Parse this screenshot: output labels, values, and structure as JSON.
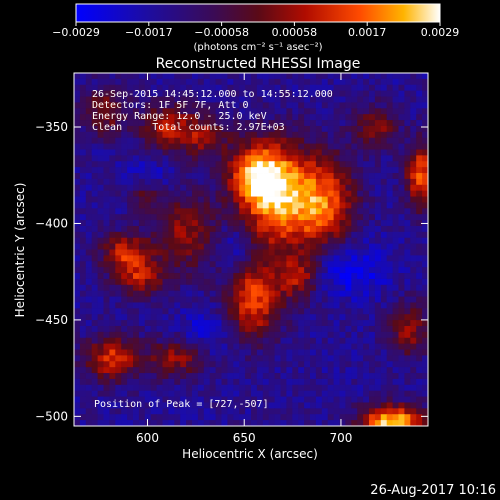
{
  "chart_data": {
    "type": "heatmap",
    "title": "Reconstructed RHESSI Image",
    "xlabel": "Heliocentric X (arcsec)",
    "ylabel": "Heliocentric Y (arcsec)",
    "xlim": [
      562,
      745
    ],
    "ylim": [
      -505,
      -322
    ],
    "x_ticks": [
      600,
      650,
      700
    ],
    "y_ticks": [
      -350,
      -400,
      -450,
      -500
    ],
    "colorbar": {
      "ticks": [
        "-0.0029",
        "-0.0017",
        "-0.00058",
        "0.00058",
        "0.0017",
        "0.0029"
      ],
      "range": [
        -0.0029,
        0.0029
      ],
      "label": "(photons cm⁻² s⁻¹ asec⁻²)"
    },
    "info_lines": [
      "26-Sep-2015 14:45:12.000 to 14:55:12.000",
      "Detectors: 1F 5F 7F, Att 0",
      "Energy Range: 12.0 - 25.0 keV",
      "Clean     Total counts: 2.97E+03"
    ],
    "peak_label": "Position of Peak = [727,-507]",
    "peak": {
      "x": 727,
      "y": -507
    },
    "blobs": [
      {
        "x": 665,
        "y": -385,
        "sx": 12,
        "sy": 20,
        "a": 1.0
      },
      {
        "x": 655,
        "y": -375,
        "sx": 10,
        "sy": 10,
        "a": 0.7
      },
      {
        "x": 690,
        "y": -390,
        "sx": 12,
        "sy": 18,
        "a": 0.9
      },
      {
        "x": 655,
        "y": -440,
        "sx": 10,
        "sy": 14,
        "a": 0.8
      },
      {
        "x": 678,
        "y": -428,
        "sx": 8,
        "sy": 8,
        "a": 0.55
      },
      {
        "x": 620,
        "y": -405,
        "sx": 12,
        "sy": 14,
        "a": 0.55
      },
      {
        "x": 610,
        "y": -350,
        "sx": 10,
        "sy": 9,
        "a": 0.6
      },
      {
        "x": 630,
        "y": -355,
        "sx": 9,
        "sy": 8,
        "a": 0.5
      },
      {
        "x": 578,
        "y": -342,
        "sx": 8,
        "sy": 9,
        "a": 0.5
      },
      {
        "x": 588,
        "y": -415,
        "sx": 9,
        "sy": 7,
        "a": 0.65
      },
      {
        "x": 596,
        "y": -428,
        "sx": 9,
        "sy": 7,
        "a": 0.6
      },
      {
        "x": 582,
        "y": -470,
        "sx": 10,
        "sy": 8,
        "a": 0.75
      },
      {
        "x": 615,
        "y": -470,
        "sx": 10,
        "sy": 7,
        "a": 0.55
      },
      {
        "x": 727,
        "y": -503,
        "sx": 12,
        "sy": 6,
        "a": 1.15
      },
      {
        "x": 742,
        "y": -375,
        "sx": 6,
        "sy": 12,
        "a": 0.85
      },
      {
        "x": 718,
        "y": -350,
        "sx": 8,
        "sy": 8,
        "a": 0.5
      },
      {
        "x": 735,
        "y": -455,
        "sx": 7,
        "sy": 10,
        "a": 0.55
      },
      {
        "x": 598,
        "y": -385,
        "sx": 6,
        "sy": 6,
        "a": 0.4
      }
    ],
    "troughs": [
      {
        "x": 703,
        "y": -423,
        "sx": 14,
        "sy": 10,
        "a": 0.7
      },
      {
        "x": 645,
        "y": -412,
        "sx": 8,
        "sy": 8,
        "a": 0.5
      },
      {
        "x": 630,
        "y": -455,
        "sx": 9,
        "sy": 8,
        "a": 0.45
      },
      {
        "x": 600,
        "y": -375,
        "sx": 8,
        "sy": 6,
        "a": 0.4
      }
    ]
  },
  "footer_date": "26-Aug-2017 10:16"
}
